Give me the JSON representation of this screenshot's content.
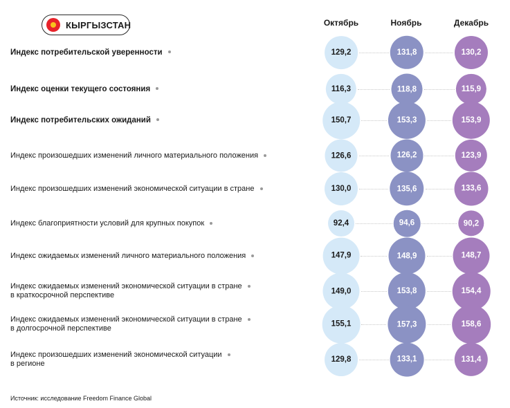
{
  "header": {
    "country": "КЫРГЫЗСТАН",
    "flag_icon": "kyrgyzstan-flag-icon",
    "months": [
      "Октябрь",
      "Ноябрь",
      "Декабрь"
    ]
  },
  "colors": {
    "october": "#d5e9f8",
    "november": "#8b92c4",
    "december": "#a57dbd"
  },
  "chart_data": {
    "type": "table",
    "columns": [
      "Октябрь",
      "Ноябрь",
      "Декабрь"
    ],
    "rows": [
      {
        "label_lines": [
          "Индекс потребительской уверенности"
        ],
        "bold": true,
        "values": [
          "129,2",
          "131,8",
          "130,2"
        ]
      },
      {
        "label_lines": [
          "Индекс оценки текущего состояния"
        ],
        "bold": true,
        "values": [
          "116,3",
          "118,8",
          "115,9"
        ]
      },
      {
        "label_lines": [
          "Индекс потребительских ожиданий"
        ],
        "bold": true,
        "values": [
          "150,7",
          "153,3",
          "153,9"
        ]
      },
      {
        "label_lines": [
          "Индекс произошедших изменений личного материального положения"
        ],
        "bold": false,
        "values": [
          "126,6",
          "126,2",
          "123,9"
        ]
      },
      {
        "label_lines": [
          "Индекс произошедших изменений экономической ситуации в стране"
        ],
        "bold": false,
        "values": [
          "130,0",
          "135,6",
          "133,6"
        ]
      },
      {
        "label_lines": [
          "Индекс благоприятности условий для крупных покупок"
        ],
        "bold": false,
        "values": [
          "92,4",
          "94,6",
          "90,2"
        ]
      },
      {
        "label_lines": [
          "Индекс ожидаемых изменений личного материального положения"
        ],
        "bold": false,
        "values": [
          "147,9",
          "148,9",
          "148,7"
        ]
      },
      {
        "label_lines": [
          "Индекс ожидаемых изменений экономической ситуации в стране",
          "в краткосрочной перспективе"
        ],
        "bold": false,
        "values": [
          "149,0",
          "153,8",
          "154,4"
        ]
      },
      {
        "label_lines": [
          "Индекс ожидаемых изменений экономической ситуации в стране",
          "в долгосрочной перспективе"
        ],
        "bold": false,
        "values": [
          "155,1",
          "157,3",
          "158,6"
        ]
      },
      {
        "label_lines": [
          "Индекс произошедших изменений экономической ситуации",
          "в регионе"
        ],
        "bold": false,
        "values": [
          "129,8",
          "133,1",
          "131,4"
        ]
      }
    ]
  },
  "footer": {
    "source": "Источник: исследование Freedom Finance Global"
  }
}
